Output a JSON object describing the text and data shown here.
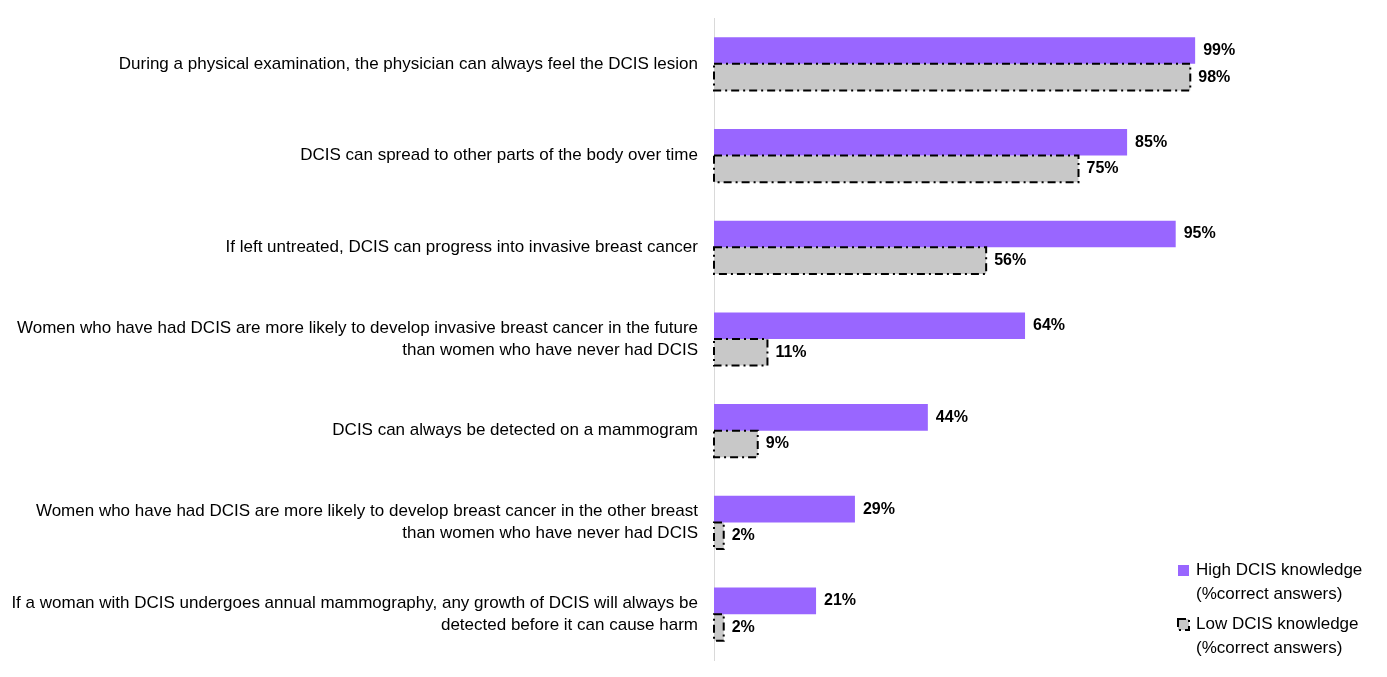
{
  "chart_data": {
    "type": "bar",
    "orientation": "horizontal",
    "legend": "bottom right",
    "categories": [
      "During a physical examination, the physician can always feel the DCIS lesion",
      "DCIS can spread to other parts of the body over time",
      "If left untreated, DCIS can progress into invasive breast cancer",
      "Women who have had DCIS are more likely to develop invasive breast cancer in the future than women who have never had DCIS",
      "DCIS can always be detected on a mammogram",
      "Women who have had DCIS are more likely to develop breast cancer in the other breast than women who have never had DCIS",
      "If a woman with DCIS undergoes annual mammography, any growth of DCIS will always be detected before it can cause harm"
    ],
    "series": [
      {
        "name": "High DCIS knowledge (%correct answers)",
        "color": "#9966ff",
        "values": [
          99,
          85,
          95,
          64,
          44,
          29,
          21
        ],
        "value_labels": [
          "99%",
          "85%",
          "95%",
          "64%",
          "44%",
          "29%",
          "21%"
        ]
      },
      {
        "name": "Low DCIS knowledge (%correct answers)",
        "color": "#c8c8c8",
        "line_style": "dashed",
        "values": [
          98,
          75,
          56,
          11,
          9,
          2,
          2
        ],
        "value_labels": [
          "98%",
          "75%",
          "56%",
          "11%",
          "9%",
          "2%",
          "2%"
        ]
      }
    ]
  }
}
